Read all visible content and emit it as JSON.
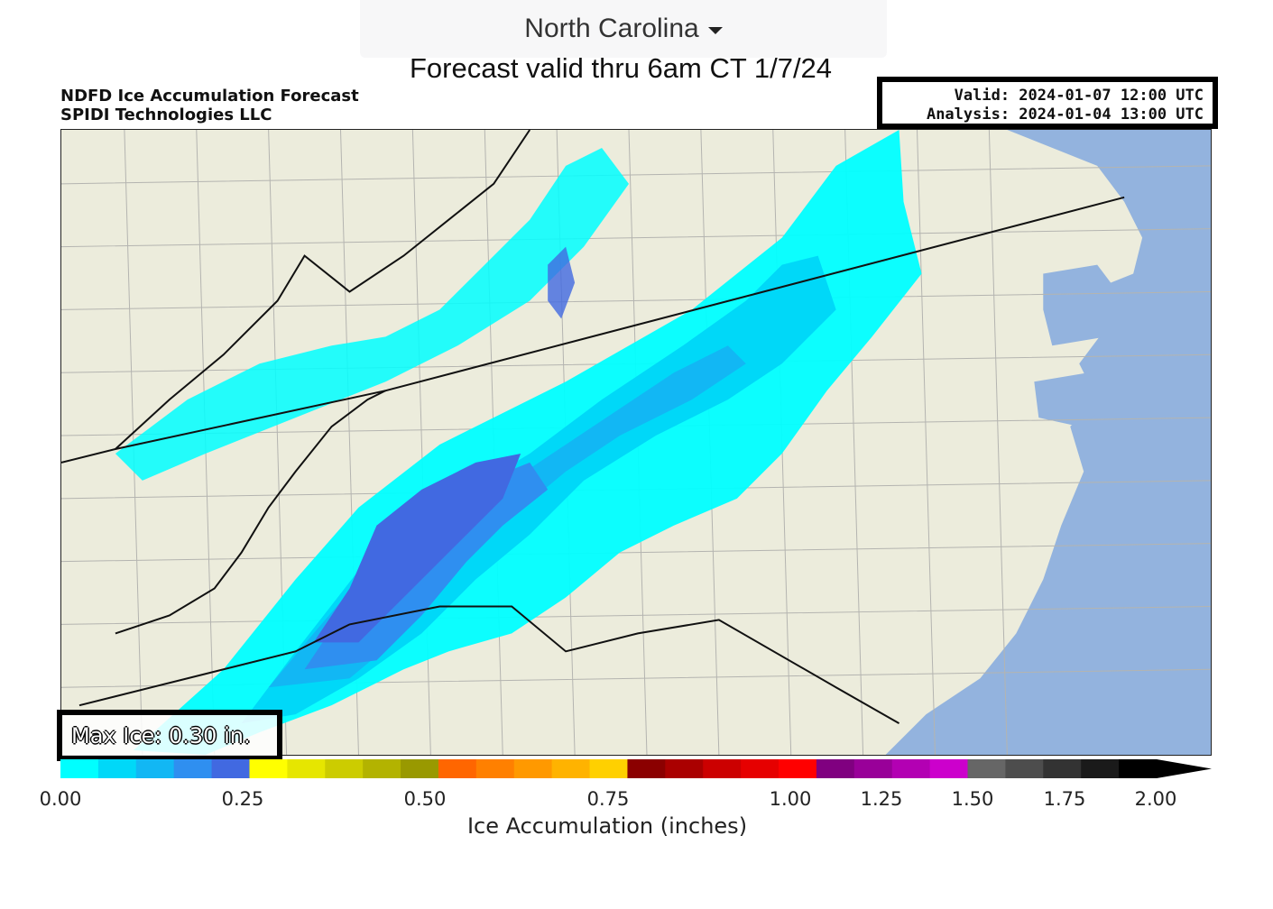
{
  "selector": {
    "label": "North Carolina",
    "icon": "caret-down-icon"
  },
  "subtitle": "Forecast valid thru 6am CT 1/7/24",
  "figure": {
    "title_line1": "NDFD Ice Accumulation Forecast",
    "title_line2": "SPIDI Technologies LLC",
    "valid_line": "Valid: 2024-01-07 12:00 UTC",
    "analysis_line": "Analysis: 2024-01-04 13:00 UTC",
    "max_ice": "Max Ice: 0.30 in."
  },
  "colorbar": {
    "label": "Ice Accumulation (inches)",
    "ticks": [
      "0.00",
      "0.25",
      "0.50",
      "0.75",
      "1.00",
      "1.25",
      "1.50",
      "1.75",
      "2.00"
    ],
    "colors": [
      "#00ffff",
      "#00d8f8",
      "#12b7f4",
      "#2f8ff0",
      "#4169e1",
      "#ffff00",
      "#e6e600",
      "#cccc00",
      "#b3b300",
      "#999900",
      "#ff6600",
      "#ff8000",
      "#ff9900",
      "#ffb300",
      "#ffd000",
      "#8b0000",
      "#aa0000",
      "#cc0000",
      "#e60000",
      "#ff0000",
      "#800080",
      "#990099",
      "#b300b3",
      "#cc00cc",
      "#666666",
      "#4d4d4d",
      "#333333",
      "#1a1a1a",
      "#000000"
    ]
  },
  "map_colors": {
    "land": "#ececdc",
    "water": "#93b3de",
    "border": "#aaaaaa",
    "state_line": "#111111"
  }
}
